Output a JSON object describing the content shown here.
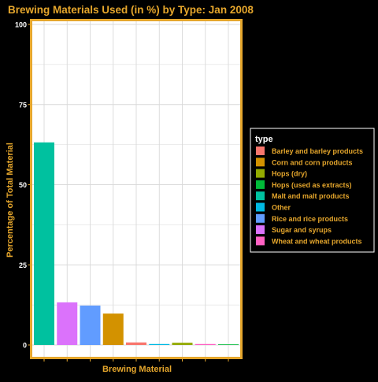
{
  "chart_data": {
    "type": "bar",
    "title": "Brewing Materials Used (in %) by Type: Jan 2008",
    "xlabel": "Brewing Material",
    "ylabel": "Percentage of Total Material",
    "ylim": [
      0,
      100
    ],
    "yticks": [
      0,
      25,
      50,
      75,
      100
    ],
    "grid": true,
    "legend_position": "right",
    "legend_title": "type",
    "categories": [
      "Malt and malt products",
      "Sugar and syrups",
      "Rice and rice products",
      "Corn and corn products",
      "Barley and barley products",
      "Other",
      "Hops (dry)",
      "Wheat and wheat products",
      "Hops (used as extracts)"
    ],
    "values": [
      63.2,
      13.3,
      12.3,
      9.8,
      0.8,
      0.3,
      0.7,
      0.3,
      0.2
    ],
    "bar_colors": [
      "#00C19F",
      "#DB72FB",
      "#619CFF",
      "#D39200",
      "#F8766D",
      "#00B9E3",
      "#93AA00",
      "#FF61C3",
      "#00BA38"
    ],
    "legend": [
      {
        "label": "Barley and barley products",
        "color": "#F8766D"
      },
      {
        "label": "Corn and corn products",
        "color": "#D39200"
      },
      {
        "label": "Hops (dry)",
        "color": "#93AA00"
      },
      {
        "label": "Hops (used as extracts)",
        "color": "#00BA38"
      },
      {
        "label": "Malt and malt products",
        "color": "#00C19F"
      },
      {
        "label": "Other",
        "color": "#00B9E3"
      },
      {
        "label": "Rice and rice products",
        "color": "#619CFF"
      },
      {
        "label": "Sugar and syrups",
        "color": "#DB72FB"
      },
      {
        "label": "Wheat and wheat products",
        "color": "#FF61C3"
      }
    ],
    "colors": {
      "accent": "#E5A62C",
      "background": "#000000",
      "panel": "#FFFFFF",
      "grid": "#D9D9D9",
      "tick_text": "#FFFFFF"
    }
  }
}
